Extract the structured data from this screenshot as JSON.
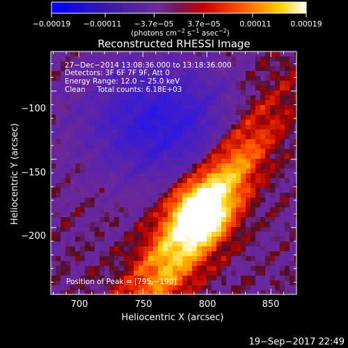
{
  "chart_data": {
    "type": "heatmap",
    "title": "Reconstructed RHESSI Image",
    "xlabel": "Heliocentric X (arcsec)",
    "ylabel": "Heliocentric Y (arcsec)",
    "xlim": [
      678,
      870
    ],
    "ylim": [
      -249,
      -71
    ],
    "x_ticks": [
      "700",
      "750",
      "800",
      "850"
    ],
    "x_tick_values": [
      700,
      750,
      800,
      850
    ],
    "y_ticks": [
      "−100",
      "−150",
      "−200"
    ],
    "y_tick_values": [
      -100,
      -150,
      -200
    ],
    "colorbar": {
      "ticks": [
        "−0.00019",
        "−0.00011",
        "−3.7e−05",
        "3.7e−05",
        "0.00011",
        "0.00019"
      ],
      "tick_values": [
        -0.00019,
        -0.00011,
        -3.7e-05,
        3.7e-05,
        0.00011,
        0.00019
      ],
      "unit_text": "(photons cm",
      "unit_exp1": "−2",
      "unit_mid": " s",
      "unit_exp2": "−1",
      "unit_mid2": " asec",
      "unit_exp3": "−2",
      "unit_end": ")",
      "range": [
        -0.00019,
        0.00019
      ]
    },
    "annotations": {
      "time": "27−Dec−2014 13:08:36.000 to 13:18:36.000",
      "detectors": "Detectors: 3F 6F 7F 9F, Att 0",
      "energy": "Energy Range: 12.0 − 25.0 keV",
      "clean": "Clean     Total counts: 6.18E+03",
      "peak": "Position of Peak = [795,−190]"
    },
    "peak": [
      795,
      -190
    ],
    "grid": false,
    "colormap": "RHESSI red-temperature with blue negatives"
  },
  "footer_timestamp": "19−Sep−2017 22:49"
}
